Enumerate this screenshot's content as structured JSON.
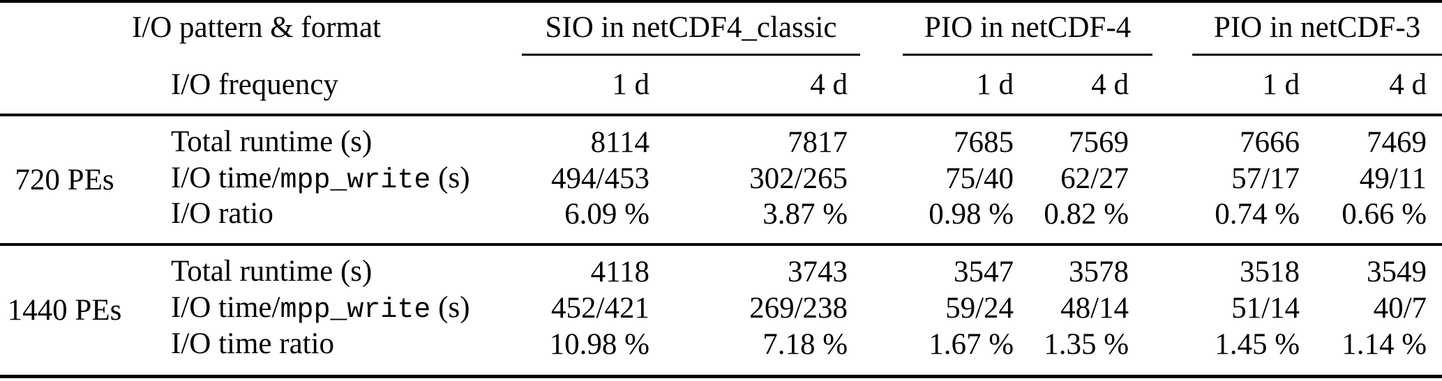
{
  "table": {
    "header": {
      "pattern_format_label": "I/O pattern & format",
      "frequency_label": "I/O frequency",
      "groups": [
        {
          "label": "SIO in netCDF4_classic",
          "freqs": [
            "1 d",
            "4 d"
          ]
        },
        {
          "label": "PIO in netCDF-4",
          "freqs": [
            "1 d",
            "4 d"
          ]
        },
        {
          "label": "PIO in netCDF-3",
          "freqs": [
            "1 d",
            "4 d"
          ]
        }
      ]
    },
    "row_groups": [
      {
        "pe_label": "720 PEs",
        "rows": [
          {
            "label_parts": {
              "pre": "Total runtime (s)",
              "mono": "",
              "post": ""
            },
            "values": [
              "8114",
              "7817",
              "7685",
              "7569",
              "7666",
              "7469"
            ]
          },
          {
            "label_parts": {
              "pre": "I/O time/",
              "mono": "mpp_write",
              "post": " (s)"
            },
            "values": [
              "494/453",
              "302/265",
              "75/40",
              "62/27",
              "57/17",
              "49/11"
            ]
          },
          {
            "label_parts": {
              "pre": "I/O ratio",
              "mono": "",
              "post": ""
            },
            "values": [
              "6.09 %",
              "3.87 %",
              "0.98 %",
              "0.82 %",
              "0.74 %",
              "0.66 %"
            ]
          }
        ]
      },
      {
        "pe_label": "1440 PEs",
        "rows": [
          {
            "label_parts": {
              "pre": "Total runtime (s)",
              "mono": "",
              "post": ""
            },
            "values": [
              "4118",
              "3743",
              "3547",
              "3578",
              "3518",
              "3549"
            ]
          },
          {
            "label_parts": {
              "pre": "I/O time/",
              "mono": "mpp_write",
              "post": " (s)"
            },
            "values": [
              "452/421",
              "269/238",
              "59/24",
              "48/14",
              "51/14",
              "40/7"
            ]
          },
          {
            "label_parts": {
              "pre": "I/O time ratio",
              "mono": "",
              "post": ""
            },
            "values": [
              "10.98 %",
              "7.18 %",
              "1.67 %",
              "1.35 %",
              "1.45 %",
              "1.14 %"
            ]
          }
        ]
      }
    ],
    "colors": {
      "text": "#000000",
      "rule": "#000000",
      "background": "#ffffff"
    }
  },
  "chart_data": {
    "type": "table",
    "column_groups": [
      "SIO in netCDF4_classic",
      "PIO in netCDF-4",
      "PIO in netCDF-3"
    ],
    "io_frequencies": [
      "1 d",
      "4 d",
      "1 d",
      "4 d",
      "1 d",
      "4 d"
    ],
    "rows": [
      {
        "pe": "720 PEs",
        "metric": "Total runtime (s)",
        "values": [
          "8114",
          "7817",
          "7685",
          "7569",
          "7666",
          "7469"
        ]
      },
      {
        "pe": "720 PEs",
        "metric": "I/O time/mpp_write (s)",
        "values": [
          "494/453",
          "302/265",
          "75/40",
          "62/27",
          "57/17",
          "49/11"
        ]
      },
      {
        "pe": "720 PEs",
        "metric": "I/O ratio",
        "values": [
          "6.09 %",
          "3.87 %",
          "0.98 %",
          "0.82 %",
          "0.74 %",
          "0.66 %"
        ]
      },
      {
        "pe": "1440 PEs",
        "metric": "Total runtime (s)",
        "values": [
          "4118",
          "3743",
          "3547",
          "3578",
          "3518",
          "3549"
        ]
      },
      {
        "pe": "1440 PEs",
        "metric": "I/O time/mpp_write (s)",
        "values": [
          "452/421",
          "269/238",
          "59/24",
          "48/14",
          "51/14",
          "40/7"
        ]
      },
      {
        "pe": "1440 PEs",
        "metric": "I/O time ratio",
        "values": [
          "10.98 %",
          "7.18 %",
          "1.67 %",
          "1.35 %",
          "1.45 %",
          "1.14 %"
        ]
      }
    ]
  }
}
